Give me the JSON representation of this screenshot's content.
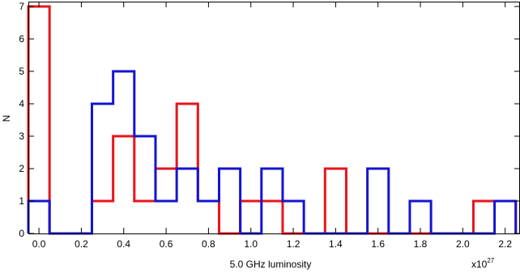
{
  "chart_data": {
    "type": "histogram",
    "xlabel": "5.0 GHz luminosity",
    "ylabel": "N",
    "x_multiplier_base": "x10",
    "x_multiplier_exponent": "27",
    "xlim": [
      -0.05,
      2.27
    ],
    "ylim": [
      0,
      7.15
    ],
    "x_ticks": [
      0.0,
      0.2,
      0.4,
      0.6,
      0.8,
      1.0,
      1.2,
      1.4,
      1.6,
      1.8,
      2.0,
      2.2
    ],
    "x_tick_labels": [
      "0.0",
      "0.2",
      "0.4",
      "0.6",
      "0.8",
      "1.0",
      "1.2",
      "1.4",
      "1.6",
      "1.8",
      "2.0",
      "2.2"
    ],
    "y_ticks": [
      0,
      1,
      2,
      3,
      4,
      5,
      6,
      7
    ],
    "y_tick_labels": [
      "0",
      "1",
      "2",
      "3",
      "4",
      "5",
      "6",
      "7"
    ],
    "bin_edges": [
      -0.05,
      0.05,
      0.15,
      0.25,
      0.35,
      0.45,
      0.55,
      0.65,
      0.75,
      0.85,
      0.95,
      1.05,
      1.15,
      1.25,
      1.35,
      1.45,
      1.55,
      1.65,
      1.75,
      1.85,
      1.95,
      2.05,
      2.15,
      2.25
    ],
    "series": [
      {
        "color": "#e8141b",
        "counts": [
          7,
          0,
          0,
          1,
          3,
          1,
          2,
          4,
          1,
          0,
          1,
          1,
          0,
          0,
          2,
          0,
          0,
          0,
          0,
          0,
          0,
          1,
          1
        ]
      },
      {
        "color": "#1414d2",
        "counts": [
          1,
          0,
          0,
          4,
          5,
          3,
          1,
          2,
          1,
          2,
          0,
          2,
          1,
          0,
          0,
          0,
          2,
          0,
          1,
          0,
          0,
          0,
          1
        ]
      }
    ]
  }
}
